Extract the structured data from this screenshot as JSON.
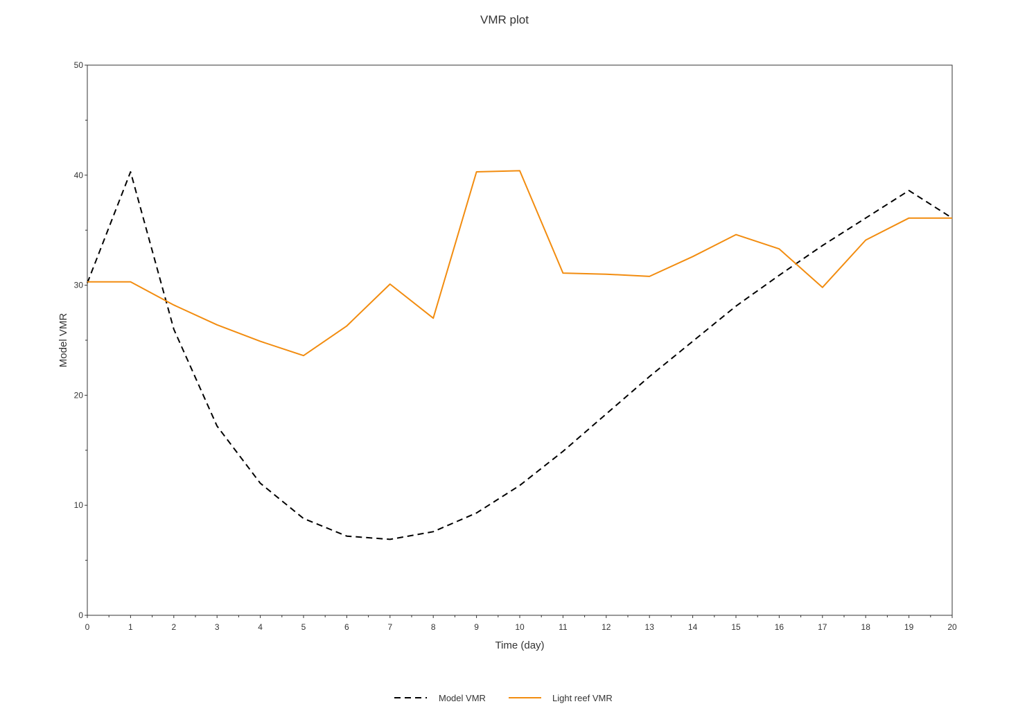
{
  "chart_data": {
    "type": "line",
    "title": "VMR plot",
    "xlabel": "Time (day)",
    "ylabel": "Model VMR",
    "xlim": [
      0,
      20
    ],
    "ylim": [
      0,
      50
    ],
    "xticks": [
      0,
      1,
      2,
      3,
      4,
      5,
      6,
      7,
      8,
      9,
      10,
      11,
      12,
      13,
      14,
      15,
      16,
      17,
      18,
      19,
      20
    ],
    "yticks": [
      0,
      10,
      20,
      30,
      40,
      50
    ],
    "grid": false,
    "legend_position": "bottom-center",
    "series": [
      {
        "name": "Model VMR",
        "color": "#000000",
        "style": "dashed",
        "x": [
          0,
          1,
          2,
          3,
          4,
          5,
          6,
          7,
          8,
          9,
          10,
          11,
          12,
          13,
          14,
          15,
          16,
          17,
          18,
          19,
          20
        ],
        "y": [
          30.2,
          40.3,
          26.0,
          17.2,
          12.0,
          8.8,
          7.2,
          6.9,
          7.6,
          9.3,
          11.8,
          14.9,
          18.3,
          21.7,
          24.9,
          28.1,
          30.9,
          33.6,
          36.1,
          38.6,
          36.1
        ]
      },
      {
        "name": "Light reef VMR",
        "color": "#F28C0F",
        "style": "solid",
        "x": [
          0,
          1,
          2,
          3,
          4,
          5,
          6,
          7,
          8,
          9,
          10,
          11,
          12,
          13,
          14,
          15,
          16,
          17,
          18,
          19,
          20
        ],
        "y": [
          30.3,
          30.3,
          28.2,
          26.4,
          24.9,
          23.6,
          26.3,
          30.1,
          27.0,
          40.3,
          40.4,
          31.1,
          31.0,
          30.8,
          32.6,
          34.6,
          33.3,
          29.8,
          34.1,
          36.1,
          36.1
        ]
      }
    ]
  }
}
